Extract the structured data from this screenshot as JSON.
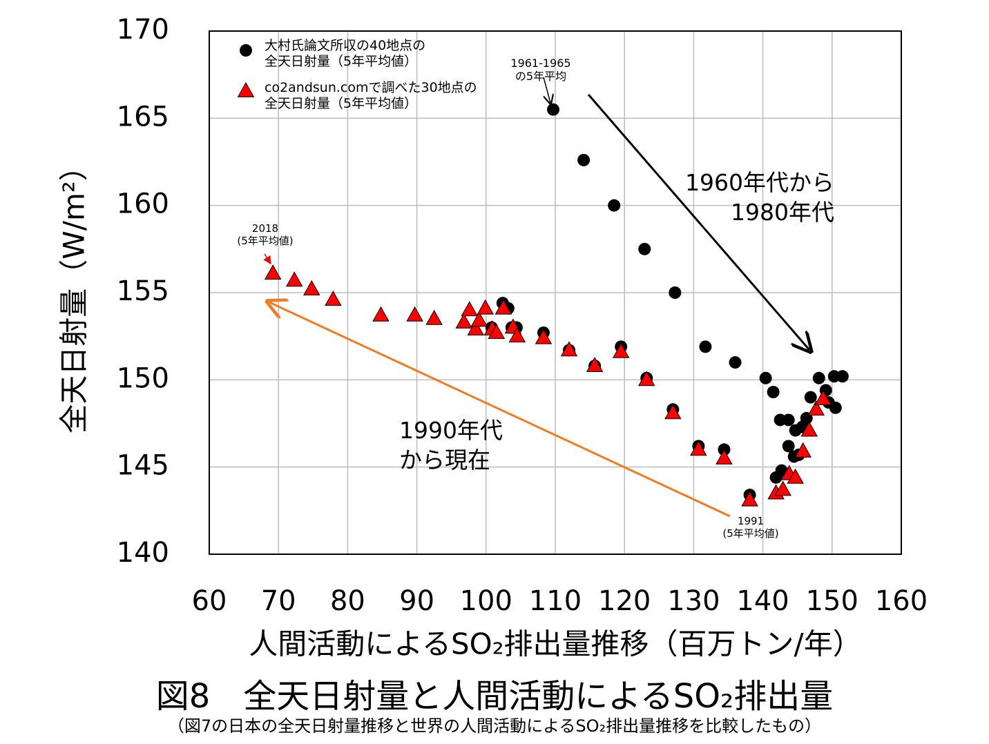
{
  "chart_data": {
    "type": "scatter",
    "title": "図8　全天日射量と人間活動によるSO₂排出量",
    "subtitle": "（図7の日本の全天日射量推移と世界の人間活動によるSO₂排出量推移を比較したもの）",
    "x_label": "人間活動によるSO₂排出量推移（百万トン/年）",
    "y_label": "全天日射量（W/m²）",
    "xlim": [
      60,
      160
    ],
    "xticks": [
      60,
      70,
      80,
      90,
      100,
      110,
      120,
      130,
      140,
      150,
      160
    ],
    "ylim": [
      140,
      170
    ],
    "yticks": [
      140,
      145,
      150,
      155,
      160,
      165,
      170
    ],
    "grid": true,
    "legend": "upper left",
    "series": [
      {
        "name": "大村氏論文所収の40地点の\n全天日射量（5年平均値）",
        "color": "#000000",
        "marker": "circle",
        "x": [
          109.7,
          114.1,
          118.5,
          122.9,
          127.3,
          131.7,
          136.0,
          140.4,
          141.5,
          142.5,
          143.7,
          144.7,
          145.7,
          146.3,
          146.9,
          148.1,
          149.1,
          149.5,
          150.3,
          150.5,
          151.5,
          143.7,
          144.5,
          142.7,
          141.9,
          138.1,
          134.4,
          130.7,
          127.0,
          123.2,
          119.5,
          115.7,
          112.0,
          108.3,
          104.4,
          103.7,
          100.8,
          102.4,
          103.2,
          145.2
        ],
        "values": [
          165.5,
          162.6,
          160.0,
          157.5,
          155.0,
          151.9,
          151.0,
          150.1,
          149.3,
          147.7,
          147.7,
          147.1,
          147.3,
          147.8,
          149.0,
          150.1,
          149.4,
          148.7,
          150.2,
          148.4,
          150.2,
          146.2,
          145.6,
          144.8,
          144.4,
          143.4,
          146.0,
          146.2,
          148.3,
          150.1,
          151.9,
          150.8,
          151.7,
          152.7,
          153.0,
          153.0,
          153.0,
          154.4,
          154.1,
          145.7
        ]
      },
      {
        "name": "co2andsun.comで調べた30地点の\n全天日射量（5年平均値）",
        "color": "#ff0000",
        "marker": "triangle",
        "x": [
          69.2,
          72.3,
          74.8,
          77.9,
          84.8,
          89.7,
          92.5,
          96.8,
          97.6,
          98.5,
          99.0,
          99.9,
          100.9,
          101.5,
          102.5,
          103.9,
          104.5,
          108.3,
          112.0,
          115.7,
          119.5,
          123.2,
          127.0,
          130.7,
          134.4,
          138.1,
          141.9,
          142.9,
          143.8,
          144.7,
          145.8,
          146.7,
          147.7,
          148.7
        ],
        "values": [
          156.1,
          155.7,
          155.2,
          154.6,
          153.7,
          153.7,
          153.5,
          153.3,
          154.0,
          152.9,
          153.4,
          154.1,
          152.9,
          152.7,
          154.1,
          153.0,
          152.5,
          152.4,
          151.7,
          150.8,
          151.6,
          150.0,
          148.1,
          146.0,
          145.5,
          143.1,
          143.5,
          143.7,
          144.6,
          144.4,
          145.9,
          147.1,
          148.3,
          148.9
        ]
      }
    ],
    "annotations": [
      "1961-1965\nの5年平均",
      "2018\n(5年平均値)",
      "1991\n(5年平均値)",
      "1960年代から\n　　1980年代",
      "1990年代\nから現在"
    ]
  }
}
